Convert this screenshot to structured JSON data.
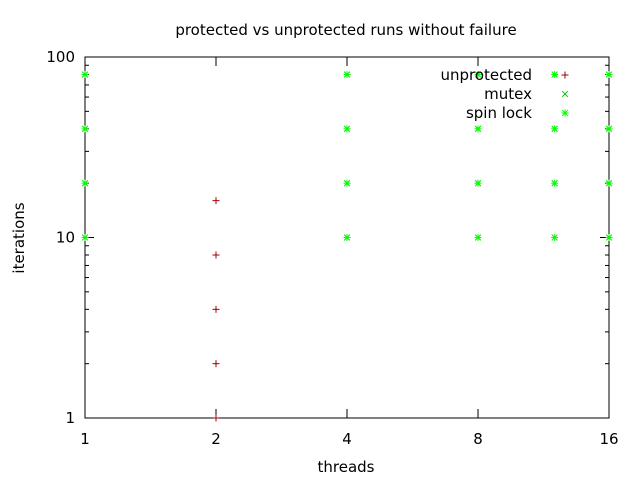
{
  "chart_data": {
    "type": "scatter",
    "title": "protected vs unprotected runs without failure",
    "xlabel": "threads",
    "ylabel": "iterations",
    "x_scale": "log2",
    "y_scale": "log10",
    "xlim": [
      1,
      16
    ],
    "ylim": [
      1,
      100
    ],
    "x_ticks": [
      {
        "value": 1,
        "label": "1"
      },
      {
        "value": 2,
        "label": "2"
      },
      {
        "value": 4,
        "label": "4"
      },
      {
        "value": 8,
        "label": "8"
      },
      {
        "value": 16,
        "label": "16"
      }
    ],
    "y_ticks": [
      {
        "value": 1,
        "label": "1"
      },
      {
        "value": 10,
        "label": "10"
      },
      {
        "value": 100,
        "label": "100"
      }
    ],
    "grid": false,
    "legend_position": "top-right",
    "series": [
      {
        "name": "unprotected",
        "marker": "plus",
        "color": "#a00000",
        "points": [
          [
            2,
            1
          ],
          [
            2,
            2
          ],
          [
            2,
            4
          ],
          [
            2,
            8
          ],
          [
            2,
            16
          ]
        ]
      },
      {
        "name": "mutex",
        "marker": "cross",
        "color": "#00c000",
        "points": [
          [
            1,
            10
          ],
          [
            1,
            20
          ],
          [
            1,
            40
          ],
          [
            1,
            80
          ],
          [
            4,
            10
          ],
          [
            4,
            20
          ],
          [
            4,
            40
          ],
          [
            4,
            80
          ],
          [
            8,
            10
          ],
          [
            8,
            20
          ],
          [
            8,
            40
          ],
          [
            8,
            80
          ],
          [
            12,
            10
          ],
          [
            12,
            20
          ],
          [
            12,
            40
          ],
          [
            12,
            80
          ],
          [
            16,
            10
          ],
          [
            16,
            20
          ],
          [
            16,
            40
          ],
          [
            16,
            80
          ]
        ]
      },
      {
        "name": "spin lock",
        "marker": "star",
        "color": "#00ff00",
        "points": [
          [
            1,
            10
          ],
          [
            1,
            20
          ],
          [
            1,
            40
          ],
          [
            1,
            80
          ],
          [
            4,
            10
          ],
          [
            4,
            20
          ],
          [
            4,
            40
          ],
          [
            4,
            80
          ],
          [
            8,
            10
          ],
          [
            8,
            20
          ],
          [
            8,
            40
          ],
          [
            8,
            80
          ],
          [
            12,
            10
          ],
          [
            12,
            20
          ],
          [
            12,
            40
          ],
          [
            12,
            80
          ],
          [
            16,
            10
          ],
          [
            16,
            20
          ],
          [
            16,
            40
          ],
          [
            16,
            80
          ]
        ]
      }
    ]
  }
}
